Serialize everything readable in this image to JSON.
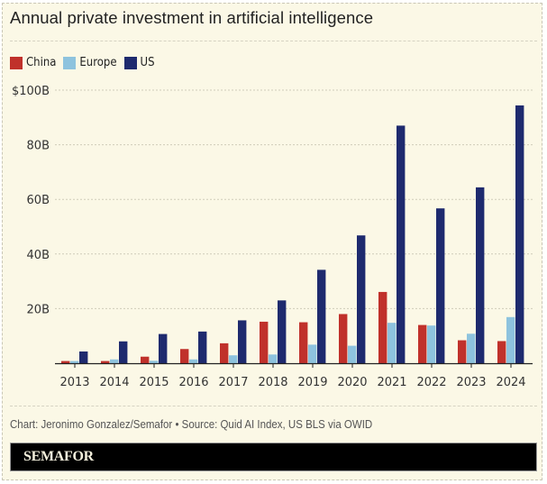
{
  "header": {
    "title": "Annual private investment in artificial intelligence"
  },
  "legend": [
    {
      "label": "China",
      "color": "#c0312b"
    },
    {
      "label": "Europe",
      "color": "#8ec3de"
    },
    {
      "label": "US",
      "color": "#1e2a6e"
    }
  ],
  "footer": {
    "note": "Chart: Jeronimo Gonzalez/Semafor • Source: Quid AI Index, US BLS via OWID",
    "brand": "SEMAFOR"
  },
  "chart_data": {
    "type": "bar",
    "title": "Annual private investment in artificial intelligence",
    "xlabel": "",
    "ylabel": "",
    "unit": "billion USD",
    "ylim": [
      0,
      100
    ],
    "yticks": [
      0,
      20,
      40,
      60,
      80,
      100
    ],
    "ytick_labels": [
      "",
      "20B",
      "40B",
      "60B",
      "80B",
      "$100B"
    ],
    "grid": true,
    "legend_position": "top-left",
    "categories": [
      "2013",
      "2014",
      "2015",
      "2016",
      "2017",
      "2018",
      "2019",
      "2020",
      "2021",
      "2022",
      "2023",
      "2024"
    ],
    "series": [
      {
        "name": "China",
        "color": "#c0312b",
        "values": [
          0.8,
          0.8,
          2.4,
          5.2,
          7.3,
          15.2,
          15.0,
          18.0,
          26.1,
          14.0,
          8.4,
          8.1
        ]
      },
      {
        "name": "Europe",
        "color": "#8ec3de",
        "values": [
          0.8,
          1.4,
          0.9,
          1.4,
          2.9,
          3.2,
          6.8,
          6.4,
          14.8,
          13.8,
          10.8,
          16.9
        ]
      },
      {
        "name": "US",
        "color": "#1e2a6e",
        "values": [
          4.3,
          8.0,
          10.7,
          11.6,
          15.7,
          23.0,
          34.2,
          46.8,
          87.0,
          56.7,
          64.4,
          94.4
        ]
      }
    ]
  }
}
